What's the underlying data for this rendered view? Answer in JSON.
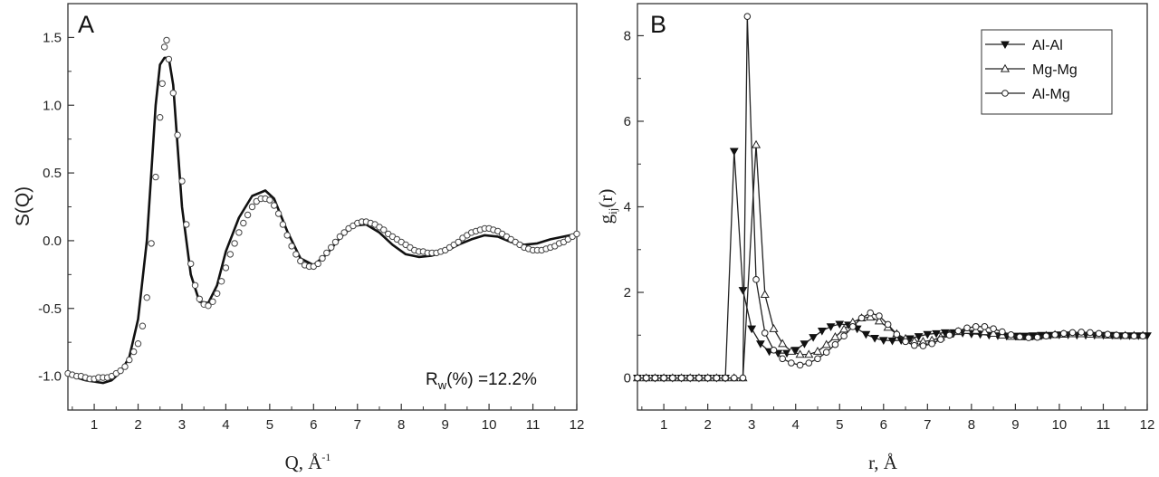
{
  "chart_data": [
    {
      "type": "line",
      "panel_label": "A",
      "xlabel": {
        "main": "Q, ",
        "unit": "Å",
        "sup": "-1"
      },
      "ylabel": "S(Q)",
      "xlim": [
        0.4,
        12
      ],
      "ylim": [
        -1.25,
        1.75
      ],
      "xticks": [
        1,
        2,
        3,
        4,
        5,
        6,
        7,
        8,
        9,
        10,
        11,
        12
      ],
      "yticks": [
        -1.0,
        -0.5,
        0.0,
        0.5,
        1.0,
        1.5
      ],
      "ytick_labels": [
        "-1.0",
        "-0.5",
        "0.0",
        "0.5",
        "1.0",
        "1.5"
      ],
      "annotation": {
        "prefix": "R",
        "sub": "w",
        "suffix": "(%) =12.2%"
      },
      "series": [
        {
          "style": "solid-line",
          "x": [
            0.4,
            0.6,
            0.8,
            1.0,
            1.2,
            1.4,
            1.6,
            1.8,
            2.0,
            2.2,
            2.3,
            2.4,
            2.5,
            2.6,
            2.7,
            2.8,
            2.9,
            3.0,
            3.2,
            3.4,
            3.6,
            3.8,
            4.0,
            4.3,
            4.6,
            4.9,
            5.1,
            5.4,
            5.7,
            6.0,
            6.3,
            6.6,
            6.9,
            7.2,
            7.5,
            7.8,
            8.1,
            8.4,
            8.7,
            9.0,
            9.3,
            9.6,
            9.9,
            10.2,
            10.5,
            10.8,
            11.1,
            11.4,
            11.7,
            12.0
          ],
          "y": [
            -0.99,
            -1.01,
            -1.03,
            -1.04,
            -1.05,
            -1.03,
            -0.97,
            -0.86,
            -0.58,
            0.0,
            0.5,
            1.0,
            1.3,
            1.35,
            1.35,
            1.15,
            0.7,
            0.25,
            -0.25,
            -0.45,
            -0.46,
            -0.33,
            -0.08,
            0.17,
            0.33,
            0.37,
            0.31,
            0.07,
            -0.13,
            -0.18,
            -0.1,
            0.02,
            0.11,
            0.12,
            0.06,
            -0.03,
            -0.1,
            -0.12,
            -0.11,
            -0.08,
            -0.03,
            0.01,
            0.04,
            0.03,
            -0.01,
            -0.03,
            -0.02,
            0.01,
            0.03,
            0.05
          ]
        },
        {
          "style": "open-circles",
          "x": [
            0.4,
            0.5,
            0.6,
            0.7,
            0.8,
            0.9,
            1.0,
            1.1,
            1.2,
            1.3,
            1.4,
            1.5,
            1.6,
            1.7,
            1.8,
            1.9,
            2.0,
            2.1,
            2.2,
            2.3,
            2.4,
            2.5,
            2.55,
            2.6,
            2.65,
            2.7,
            2.8,
            2.9,
            3.0,
            3.1,
            3.2,
            3.3,
            3.4,
            3.5,
            3.6,
            3.7,
            3.8,
            3.9,
            4.0,
            4.1,
            4.2,
            4.3,
            4.4,
            4.5,
            4.6,
            4.7,
            4.8,
            4.9,
            5.0,
            5.1,
            5.2,
            5.3,
            5.4,
            5.5,
            5.6,
            5.7,
            5.8,
            5.9,
            6.0,
            6.1,
            6.2,
            6.3,
            6.4,
            6.5,
            6.6,
            6.7,
            6.8,
            6.9,
            7.0,
            7.1,
            7.2,
            7.3,
            7.4,
            7.5,
            7.6,
            7.7,
            7.8,
            7.9,
            8.0,
            8.1,
            8.2,
            8.3,
            8.4,
            8.5,
            8.6,
            8.7,
            8.8,
            8.9,
            9.0,
            9.1,
            9.2,
            9.3,
            9.4,
            9.5,
            9.6,
            9.7,
            9.8,
            9.9,
            10.0,
            10.1,
            10.2,
            10.3,
            10.4,
            10.5,
            10.6,
            10.7,
            10.8,
            10.9,
            11.0,
            11.1,
            11.2,
            11.3,
            11.4,
            11.5,
            11.6,
            11.7,
            11.8,
            11.9,
            12.0
          ],
          "y": [
            -0.98,
            -0.99,
            -1.0,
            -1.0,
            -1.01,
            -1.02,
            -1.02,
            -1.01,
            -1.01,
            -1.01,
            -1.0,
            -0.98,
            -0.96,
            -0.93,
            -0.88,
            -0.82,
            -0.76,
            -0.63,
            -0.42,
            -0.02,
            0.47,
            0.91,
            1.16,
            1.43,
            1.48,
            1.34,
            1.09,
            0.78,
            0.44,
            0.12,
            -0.17,
            -0.33,
            -0.43,
            -0.47,
            -0.48,
            -0.45,
            -0.39,
            -0.3,
            -0.2,
            -0.1,
            -0.02,
            0.06,
            0.13,
            0.19,
            0.25,
            0.29,
            0.31,
            0.31,
            0.3,
            0.26,
            0.2,
            0.12,
            0.04,
            -0.04,
            -0.1,
            -0.15,
            -0.18,
            -0.19,
            -0.19,
            -0.17,
            -0.13,
            -0.09,
            -0.05,
            -0.01,
            0.03,
            0.06,
            0.09,
            0.11,
            0.13,
            0.14,
            0.14,
            0.13,
            0.12,
            0.1,
            0.08,
            0.05,
            0.03,
            0.01,
            -0.01,
            -0.03,
            -0.05,
            -0.07,
            -0.08,
            -0.08,
            -0.09,
            -0.09,
            -0.09,
            -0.08,
            -0.07,
            -0.05,
            -0.03,
            -0.01,
            0.02,
            0.04,
            0.06,
            0.07,
            0.08,
            0.09,
            0.09,
            0.08,
            0.07,
            0.05,
            0.03,
            0.01,
            -0.01,
            -0.03,
            -0.05,
            -0.06,
            -0.07,
            -0.07,
            -0.07,
            -0.06,
            -0.05,
            -0.04,
            -0.02,
            -0.01,
            0.01,
            0.03,
            0.05
          ]
        }
      ]
    },
    {
      "type": "line",
      "panel_label": "B",
      "xlabel": {
        "main": "r, ",
        "unit": "Å"
      },
      "ylabel": {
        "main": "g",
        "sub": "ij",
        "suffix": "(r)"
      },
      "xlim": [
        0.4,
        12
      ],
      "ylim": [
        -0.75,
        8.75
      ],
      "xticks": [
        1,
        2,
        3,
        4,
        5,
        6,
        7,
        8,
        9,
        10,
        11,
        12
      ],
      "yticks": [
        0,
        2,
        4,
        6,
        8
      ],
      "ytick_labels": [
        "0",
        "2",
        "4",
        "6",
        "8"
      ],
      "legend_position": "top-right",
      "series": [
        {
          "name": "Al-Al",
          "marker": "filled-triangle-down",
          "x": [
            0.4,
            0.6,
            0.8,
            1.0,
            1.2,
            1.4,
            1.6,
            1.8,
            2.0,
            2.2,
            2.4,
            2.6,
            2.8,
            3.0,
            3.2,
            3.4,
            3.6,
            3.8,
            4.0,
            4.2,
            4.4,
            4.6,
            4.8,
            5.0,
            5.2,
            5.4,
            5.6,
            5.8,
            6.0,
            6.2,
            6.4,
            6.6,
            6.8,
            7.0,
            7.2,
            7.4,
            7.6,
            7.8,
            8.0,
            8.2,
            8.4,
            8.6,
            8.8,
            9.0,
            9.2,
            9.4,
            9.6,
            9.8,
            10.0,
            10.2,
            10.4,
            10.6,
            10.8,
            11.0,
            11.2,
            11.4,
            11.6,
            11.8,
            12.0
          ],
          "y": [
            0,
            0,
            0,
            0,
            0,
            0,
            0,
            0,
            0,
            0,
            0,
            5.3,
            2.05,
            1.15,
            0.8,
            0.62,
            0.58,
            0.58,
            0.65,
            0.8,
            0.95,
            1.1,
            1.2,
            1.26,
            1.24,
            1.15,
            1.02,
            0.93,
            0.88,
            0.87,
            0.88,
            0.92,
            0.97,
            1.02,
            1.04,
            1.06,
            1.06,
            1.05,
            1.03,
            1.02,
            1.0,
            0.99,
            0.98,
            0.98,
            0.98,
            0.99,
            1.0,
            1.0,
            1.01,
            1.01,
            1.0,
            1.0,
            1.0,
            1.0,
            1.0,
            0.99,
            0.99,
            0.99,
            0.99
          ]
        },
        {
          "name": "Mg-Mg",
          "marker": "open-triangle-up",
          "x": [
            0.4,
            0.6,
            0.8,
            1.0,
            1.2,
            1.4,
            1.6,
            1.8,
            2.0,
            2.2,
            2.4,
            2.6,
            2.8,
            3.1,
            3.3,
            3.5,
            3.7,
            3.9,
            4.1,
            4.3,
            4.5,
            4.7,
            4.9,
            5.1,
            5.3,
            5.5,
            5.7,
            5.9,
            6.1,
            6.3,
            6.5,
            6.7,
            6.9,
            7.1,
            7.3,
            7.5,
            7.7,
            7.9,
            8.1,
            8.3,
            8.5,
            8.7,
            8.9,
            9.1,
            9.3,
            9.5,
            9.7,
            9.9,
            10.1,
            10.3,
            10.5,
            10.7,
            10.9,
            11.1,
            11.3,
            11.5,
            11.7,
            11.9
          ],
          "y": [
            0,
            0,
            0,
            0,
            0,
            0,
            0,
            0,
            0,
            0,
            0,
            0,
            0,
            5.45,
            1.95,
            1.15,
            0.8,
            0.62,
            0.55,
            0.55,
            0.62,
            0.78,
            0.96,
            1.14,
            1.3,
            1.4,
            1.42,
            1.33,
            1.18,
            1.03,
            0.92,
            0.86,
            0.85,
            0.88,
            0.95,
            1.02,
            1.08,
            1.11,
            1.11,
            1.08,
            1.04,
            1.0,
            0.97,
            0.96,
            0.96,
            0.97,
            0.99,
            1.01,
            1.02,
            1.03,
            1.03,
            1.02,
            1.01,
            1.0,
            0.99,
            0.99,
            0.99,
            0.99
          ]
        },
        {
          "name": "Al-Mg",
          "marker": "open-circle",
          "x": [
            0.4,
            0.6,
            0.8,
            1.0,
            1.2,
            1.4,
            1.6,
            1.8,
            2.0,
            2.2,
            2.4,
            2.6,
            2.8,
            2.9,
            3.1,
            3.3,
            3.5,
            3.7,
            3.9,
            4.1,
            4.3,
            4.5,
            4.7,
            4.9,
            5.1,
            5.3,
            5.5,
            5.7,
            5.9,
            6.1,
            6.3,
            6.5,
            6.7,
            6.9,
            7.1,
            7.3,
            7.5,
            7.7,
            7.9,
            8.1,
            8.3,
            8.5,
            8.7,
            8.9,
            9.1,
            9.3,
            9.5,
            9.7,
            9.9,
            10.1,
            10.3,
            10.5,
            10.7,
            10.9,
            11.1,
            11.3,
            11.5,
            11.7,
            11.9
          ],
          "y": [
            0,
            0,
            0,
            0,
            0,
            0,
            0,
            0,
            0,
            0,
            0,
            0,
            0,
            8.45,
            2.3,
            1.05,
            0.65,
            0.45,
            0.35,
            0.3,
            0.35,
            0.45,
            0.6,
            0.78,
            0.98,
            1.2,
            1.4,
            1.52,
            1.45,
            1.25,
            1.02,
            0.85,
            0.76,
            0.75,
            0.8,
            0.9,
            1.0,
            1.1,
            1.17,
            1.2,
            1.2,
            1.15,
            1.08,
            1.01,
            0.96,
            0.94,
            0.95,
            0.98,
            1.01,
            1.04,
            1.06,
            1.07,
            1.06,
            1.04,
            1.02,
            1.0,
            0.99,
            0.98,
            0.98
          ]
        }
      ]
    }
  ]
}
